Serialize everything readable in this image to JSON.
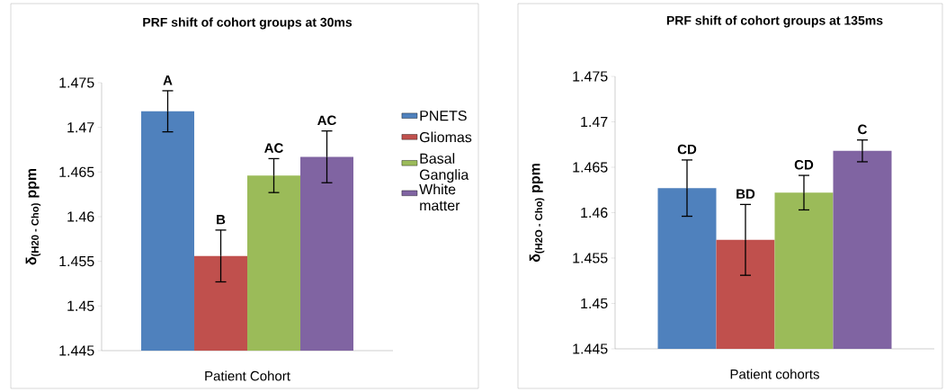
{
  "chart_data": [
    {
      "type": "bar",
      "title": "PRF shift of cohort groups at 30ms",
      "xlabel": "Patient Cohort",
      "ylabel": "\\text{δ}_{\\text{(H20 - Cho)}}\\text{ ppm}",
      "categories": [
        null
      ],
      "ylim": [
        1.445,
        1.475
      ],
      "yticks": [
        1.445,
        1.45,
        1.455,
        1.46,
        1.465,
        1.47,
        1.475
      ],
      "legend": "right",
      "series": [
        {
          "name": "PNETS",
          "color": "#4f81bd",
          "values": [
            1.4718
          ],
          "errors": [
            0.0023
          ],
          "value_labels": [
            "A"
          ]
        },
        {
          "name": "Gliomas",
          "color": "#c0504d",
          "values": [
            1.4556
          ],
          "errors": [
            0.0029
          ],
          "value_labels": [
            "B"
          ]
        },
        {
          "name": "Basal Ganglia",
          "color": "#9bbb59",
          "values": [
            1.4646
          ],
          "errors": [
            0.0019
          ],
          "value_labels": [
            "AC"
          ]
        },
        {
          "name": "White matter",
          "color": "#8064a2",
          "values": [
            1.4667
          ],
          "errors": [
            0.0029
          ],
          "value_labels": [
            "AC"
          ]
        }
      ]
    },
    {
      "type": "bar",
      "title": "PRF shift of cohort groups at 135ms",
      "xlabel": "Patient cohorts",
      "ylabel": "\\text{δ}_{\\text{(H2O - Cho)}}\\text{ ppm}",
      "categories": [
        null
      ],
      "ylim": [
        1.445,
        1.475
      ],
      "yticks": [
        1.445,
        1.45,
        1.455,
        1.46,
        1.465,
        1.47,
        1.475
      ],
      "series": [
        {
          "color": "#4f81bd",
          "values": [
            1.4627
          ],
          "errors": [
            0.0031
          ],
          "value_labels": [
            "CD"
          ]
        },
        {
          "color": "#c0504d",
          "values": [
            1.457
          ],
          "errors": [
            0.0039
          ],
          "value_labels": [
            "BD"
          ]
        },
        {
          "color": "#9bbb59",
          "values": [
            1.4622
          ],
          "errors": [
            0.0019
          ],
          "value_labels": [
            "CD"
          ]
        },
        {
          "color": "#8064a2",
          "values": [
            1.4668
          ],
          "errors": [
            0.0012
          ],
          "value_labels": [
            "C"
          ]
        }
      ]
    }
  ]
}
